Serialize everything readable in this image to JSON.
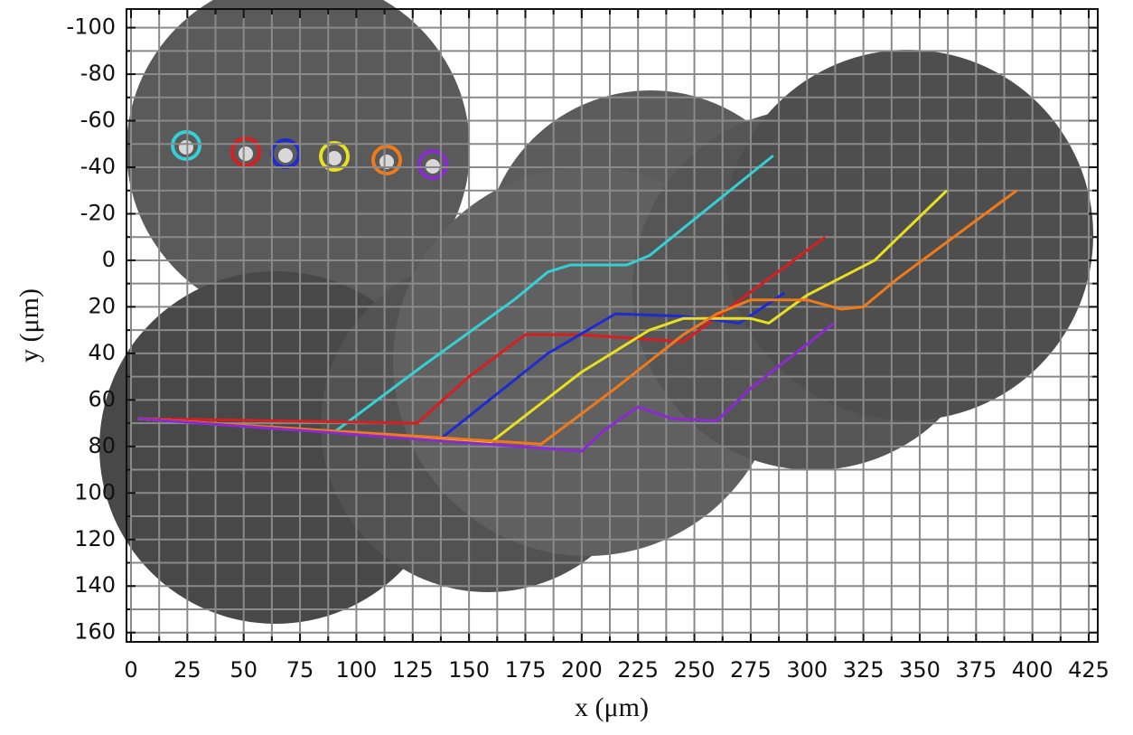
{
  "chart_data": {
    "type": "line",
    "x_label": "x (μm)",
    "y_label": "y (μm)",
    "xlim": [
      -2,
      429
    ],
    "ylim": [
      -108,
      164
    ],
    "y_inverted": true,
    "grid": true,
    "xticks": [
      0,
      25,
      50,
      75,
      100,
      125,
      150,
      175,
      200,
      225,
      250,
      275,
      300,
      325,
      350,
      375,
      400,
      425
    ],
    "xminorticks": [
      12.5,
      37.5,
      62.5,
      87.5,
      112.5,
      137.5,
      162.5,
      187.5,
      212.5,
      237.5,
      262.5,
      287.5,
      312.5,
      337.5,
      362.5,
      387.5,
      412.5
    ],
    "yticks": [
      -100,
      -80,
      -60,
      -40,
      -20,
      0,
      20,
      40,
      60,
      80,
      100,
      120,
      140,
      160
    ],
    "yminorticks": [
      -90,
      -70,
      -50,
      -30,
      -10,
      10,
      30,
      50,
      70,
      90,
      110,
      130,
      150
    ],
    "series": [
      {
        "color": "#35d0d6",
        "x": [
          3,
          90,
          130,
          170,
          185,
          195,
          220,
          230,
          285
        ],
        "values": [
          68,
          74,
          45,
          17,
          5,
          2,
          2,
          -2,
          -45
        ]
      },
      {
        "color": "#d42020",
        "x": [
          3,
          127,
          150,
          175,
          200,
          245,
          255,
          308
        ],
        "values": [
          68,
          70,
          50,
          32,
          32,
          35,
          28,
          -10
        ]
      },
      {
        "color": "#1f2ad0",
        "x": [
          3,
          137,
          185,
          215,
          245,
          270,
          290
        ],
        "values": [
          68,
          77,
          40,
          23,
          24,
          27,
          14
        ]
      },
      {
        "color": "#e8e020",
        "x": [
          3,
          160,
          200,
          230,
          245,
          275,
          283,
          300,
          330,
          362
        ],
        "values": [
          68,
          78,
          48,
          30,
          25,
          25,
          27,
          15,
          0,
          -30
        ]
      },
      {
        "color": "#f07a1a",
        "x": [
          3,
          182,
          215,
          245,
          260,
          275,
          300,
          315,
          325,
          340,
          393
        ],
        "values": [
          68,
          79,
          55,
          32,
          23,
          17,
          17,
          21,
          20,
          8,
          -30
        ]
      },
      {
        "color": "#8a2ad0",
        "x": [
          3,
          200,
          210,
          225,
          240,
          260,
          275,
          312
        ],
        "values": [
          68,
          82,
          73,
          63,
          68,
          69,
          55,
          27
        ]
      }
    ]
  }
}
